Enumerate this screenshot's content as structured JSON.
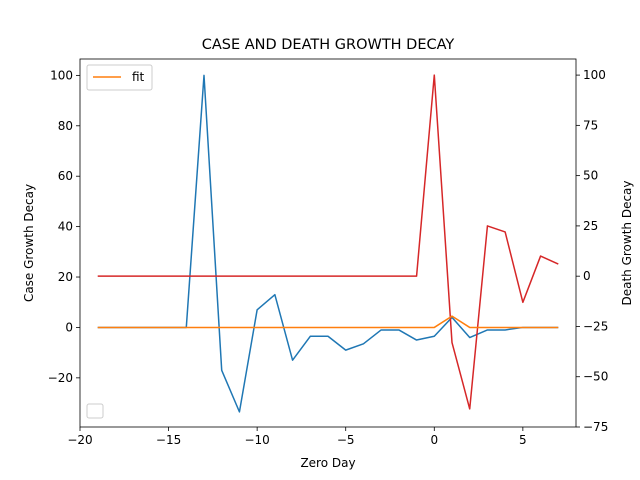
{
  "chart_data": {
    "type": "line",
    "title": "CASE AND DEATH GROWTH DECAY",
    "xlabel": "Zero Day",
    "ylabel_left": "Case Growth Decay",
    "ylabel_right": "Death Growth Decay",
    "xlim": [
      -20,
      8
    ],
    "ylim_left": [
      -39.5,
      106.5
    ],
    "ylim_right": [
      -75,
      108
    ],
    "x_ticks": [
      -20,
      -15,
      -10,
      -5,
      0,
      5
    ],
    "y_ticks_left": [
      -20,
      0,
      20,
      40,
      60,
      80,
      100
    ],
    "y_ticks_right": [
      -75,
      -50,
      -25,
      0,
      25,
      50,
      75,
      100
    ],
    "grid": false,
    "legend_placement": "upper-left",
    "colors": {
      "case": "#1f77b4",
      "death": "#d62728",
      "fit": "#ff7f0e"
    },
    "series": [
      {
        "key": "case",
        "axis": "left",
        "x": [
          -19,
          -18,
          -17,
          -16,
          -15,
          -14,
          -13,
          -12,
          -11,
          -10,
          -9,
          -8,
          -7,
          -6,
          -5,
          -4,
          -3,
          -2,
          -1,
          0,
          1,
          2,
          3,
          4,
          5,
          6,
          7
        ],
        "y": [
          0,
          0,
          0,
          0,
          0,
          0,
          100,
          -17,
          -33.5,
          7,
          13,
          -13,
          -3.5,
          -3.5,
          -9,
          -6.5,
          -1,
          -1,
          -5,
          -3.5,
          4,
          -4,
          -1,
          -1,
          0,
          0,
          0
        ]
      },
      {
        "key": "death",
        "axis": "right",
        "x": [
          -19,
          -18,
          -17,
          -16,
          -15,
          -14,
          -13,
          -12,
          -11,
          -10,
          -9,
          -8,
          -7,
          -6,
          -5,
          -4,
          -3,
          -2,
          -1,
          0,
          1,
          2,
          3,
          4,
          5,
          6,
          7
        ],
        "y": [
          0,
          0,
          0,
          0,
          0,
          0,
          0,
          0,
          0,
          0,
          0,
          0,
          0,
          0,
          0,
          0,
          0,
          0,
          0,
          100,
          -33,
          -66,
          25,
          22,
          -13,
          10,
          6
        ]
      },
      {
        "name": "fit",
        "key": "fit",
        "axis": "left",
        "x": [
          -19,
          -18,
          -17,
          -16,
          -15,
          -14,
          -13,
          -12,
          -11,
          -10,
          -9,
          -8,
          -7,
          -6,
          -5,
          -4,
          -3,
          -2,
          -1,
          0,
          1,
          2,
          3,
          4,
          5,
          6,
          7
        ],
        "y": [
          0,
          0,
          0,
          0,
          0,
          0,
          0,
          0,
          0,
          0,
          0,
          0,
          0,
          0,
          0,
          0,
          0,
          0,
          0,
          0,
          4.5,
          0,
          0,
          0,
          0,
          0,
          0
        ]
      }
    ],
    "legend": [
      {
        "label": "fit",
        "series": "fit"
      }
    ]
  }
}
